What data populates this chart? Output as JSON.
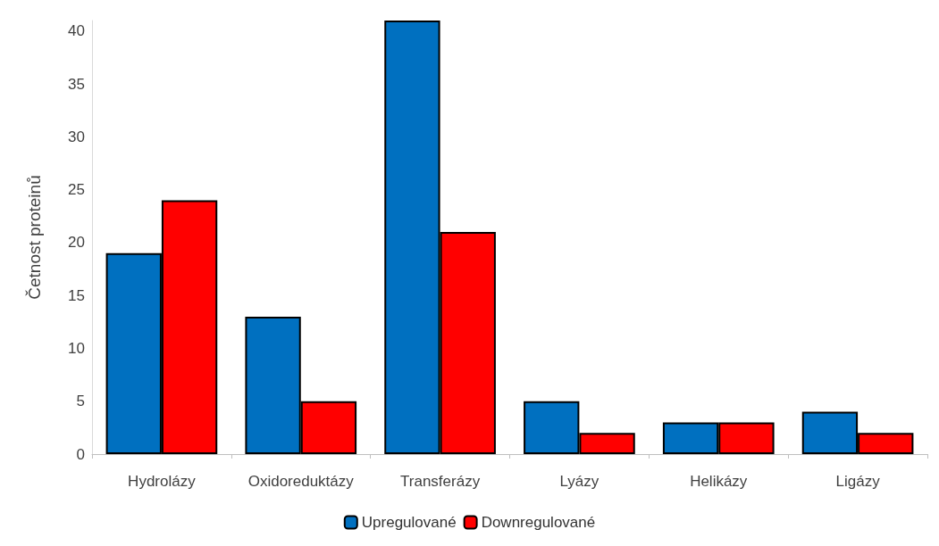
{
  "chart_data": {
    "type": "bar",
    "ylabel": "Četnost proteinů",
    "categories": [
      "Hydrolázy",
      "Oxidoreduktázy",
      "Transferázy",
      "Lyázy",
      "Helikázy",
      "Ligázy"
    ],
    "series": [
      {
        "name": "Upregulované",
        "color": "#0070c0",
        "values": [
          19,
          13,
          41,
          5,
          3,
          4
        ]
      },
      {
        "name": "Downregulované",
        "color": "#ff0000",
        "values": [
          24,
          5,
          21,
          2,
          3,
          2
        ]
      }
    ],
    "ylim": [
      0,
      41
    ],
    "yticks": [
      0,
      5,
      10,
      15,
      20,
      25,
      30,
      35,
      40
    ],
    "grid": false,
    "legend": "bottom"
  }
}
